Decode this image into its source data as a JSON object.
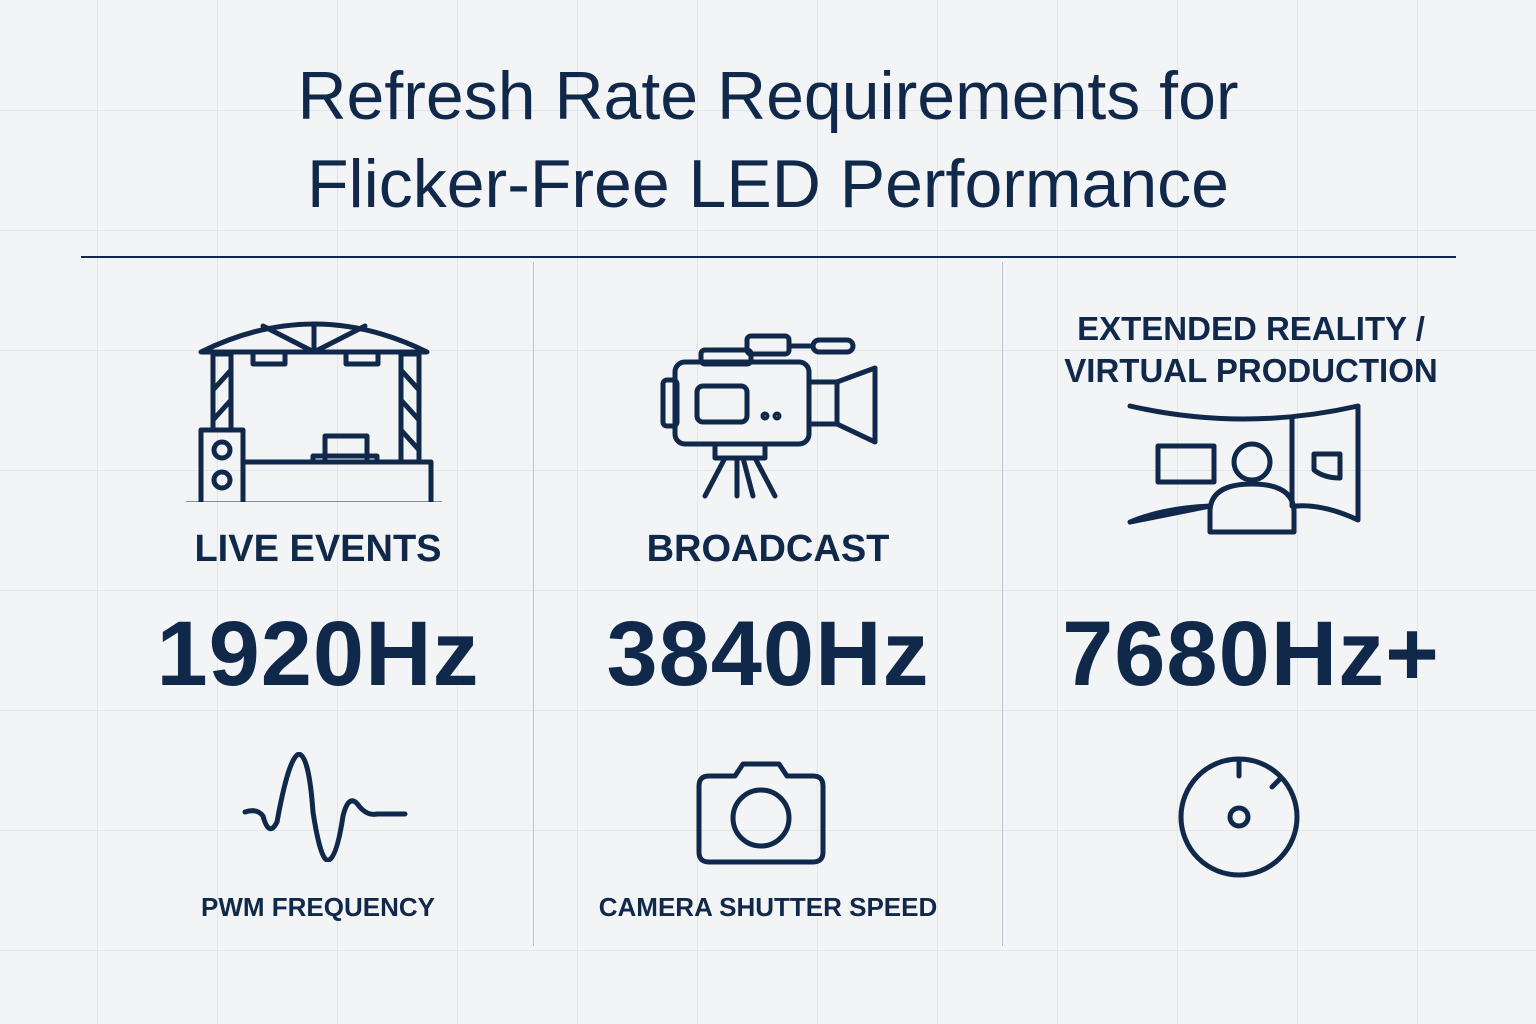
{
  "title": {
    "line1": "Refresh Rate Requirements for",
    "line2": "Flicker-Free LED Performance"
  },
  "columns": [
    {
      "label": "LIVE EVENTS",
      "value": "1920Hz",
      "icon": "stage-icon",
      "sub_icon": "waveform-icon",
      "sub_label": "PWM FREQUENCY"
    },
    {
      "label": "BROADCAST",
      "value": "3840Hz",
      "icon": "video-camera-icon",
      "sub_icon": "camera-icon",
      "sub_label": "CAMERA SHUTTER SPEED"
    },
    {
      "label_line1": "EXTENDED REALITY /",
      "label_line2": "VIRTUAL PRODUCTION",
      "value": "7680Hz+",
      "icon": "led-volume-icon",
      "sub_icon": "gauge-icon"
    }
  ],
  "colors": {
    "primary": "#10284a",
    "background": "#f3f4f6",
    "grid": "#e3e6ea"
  }
}
